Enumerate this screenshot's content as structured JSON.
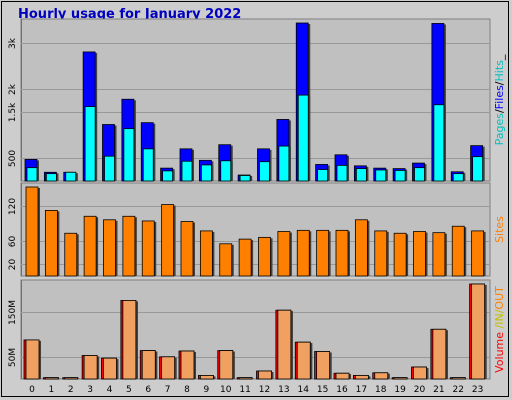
{
  "title": "Hourly usage for January 2022",
  "colors": {
    "background": "#cdcdcd",
    "panel": "#c0c0c0",
    "hits": "#00ffff",
    "files": "#0000ff",
    "pages": "#00c0c0",
    "sites": "#ff8000",
    "volume": "#ff0000",
    "volume_in": "#f0a060",
    "title": "#0000c0"
  },
  "chart_data": [
    {
      "type": "bar",
      "id": "hits-files",
      "categories": [
        "0",
        "1",
        "2",
        "3",
        "4",
        "5",
        "6",
        "7",
        "8",
        "9",
        "10",
        "11",
        "12",
        "13",
        "14",
        "15",
        "16",
        "17",
        "18",
        "19",
        "20",
        "21",
        "22",
        "23"
      ],
      "series": [
        {
          "name": "Files",
          "values": [
            470,
            190,
            190,
            2810,
            1230,
            1780,
            1270,
            280,
            700,
            450,
            790,
            130,
            700,
            1340,
            3440,
            360,
            570,
            330,
            280,
            270,
            390,
            3430,
            200,
            770
          ]
        },
        {
          "name": "Hits",
          "values": [
            290,
            160,
            190,
            1620,
            540,
            1140,
            700,
            220,
            430,
            350,
            440,
            120,
            420,
            760,
            1870,
            250,
            340,
            270,
            240,
            230,
            290,
            1660,
            160,
            530
          ]
        }
      ],
      "ytick_labels": [
        "500",
        "1.5k",
        "2k",
        "3k"
      ],
      "ytick_values": [
        500,
        1500,
        2000,
        3000
      ],
      "ylim": [
        0,
        3440
      ]
    },
    {
      "type": "bar",
      "id": "sites",
      "categories": [
        "0",
        "1",
        "2",
        "3",
        "4",
        "5",
        "6",
        "7",
        "8",
        "9",
        "10",
        "11",
        "12",
        "13",
        "14",
        "15",
        "16",
        "17",
        "18",
        "19",
        "20",
        "21",
        "22",
        "23"
      ],
      "series": [
        {
          "name": "Sites",
          "values": [
            152,
            112,
            73,
            102,
            96,
            102,
            94,
            122,
            93,
            77,
            55,
            63,
            66,
            76,
            78,
            78,
            78,
            96,
            77,
            73,
            76,
            74,
            85,
            77
          ]
        }
      ],
      "ytick_labels": [
        "20",
        "60",
        "120"
      ],
      "ytick_values": [
        20,
        60,
        120
      ],
      "ylim": [
        0,
        152
      ]
    },
    {
      "type": "bar",
      "id": "volume",
      "categories": [
        "0",
        "1",
        "2",
        "3",
        "4",
        "5",
        "6",
        "7",
        "8",
        "9",
        "10",
        "11",
        "12",
        "13",
        "14",
        "15",
        "16",
        "17",
        "18",
        "19",
        "20",
        "21",
        "22",
        "23"
      ],
      "series": [
        {
          "name": "Volume",
          "values": [
            88,
            3,
            3,
            53,
            47,
            177,
            64,
            50,
            63,
            8,
            64,
            3,
            18,
            155,
            83,
            62,
            13,
            8,
            14,
            3,
            27,
            112,
            3,
            214
          ]
        }
      ],
      "ytick_labels": [
        "50M",
        "150M"
      ],
      "ytick_values": [
        50,
        150
      ],
      "ylim": [
        0,
        214
      ]
    }
  ],
  "right_labels": {
    "top": [
      {
        "text": "Pages",
        "color": "#00c0c0"
      },
      {
        "text": "/",
        "color": "#000000"
      },
      {
        "text": "Files",
        "color": "#0000ff"
      },
      {
        "text": "/",
        "color": "#000000"
      },
      {
        "text": "Hits",
        "color": "#00c0c0"
      },
      {
        "text": "_",
        "color": "#000000"
      }
    ],
    "middle": [
      {
        "text": "Sites",
        "color": "#ff8000"
      }
    ],
    "bottom": [
      {
        "text": "Volume",
        "color": "#ff0000"
      },
      {
        "text": " /IN/",
        "color": "#c0c000"
      },
      {
        "text": "OUT",
        "color": "#ff8000"
      }
    ]
  }
}
